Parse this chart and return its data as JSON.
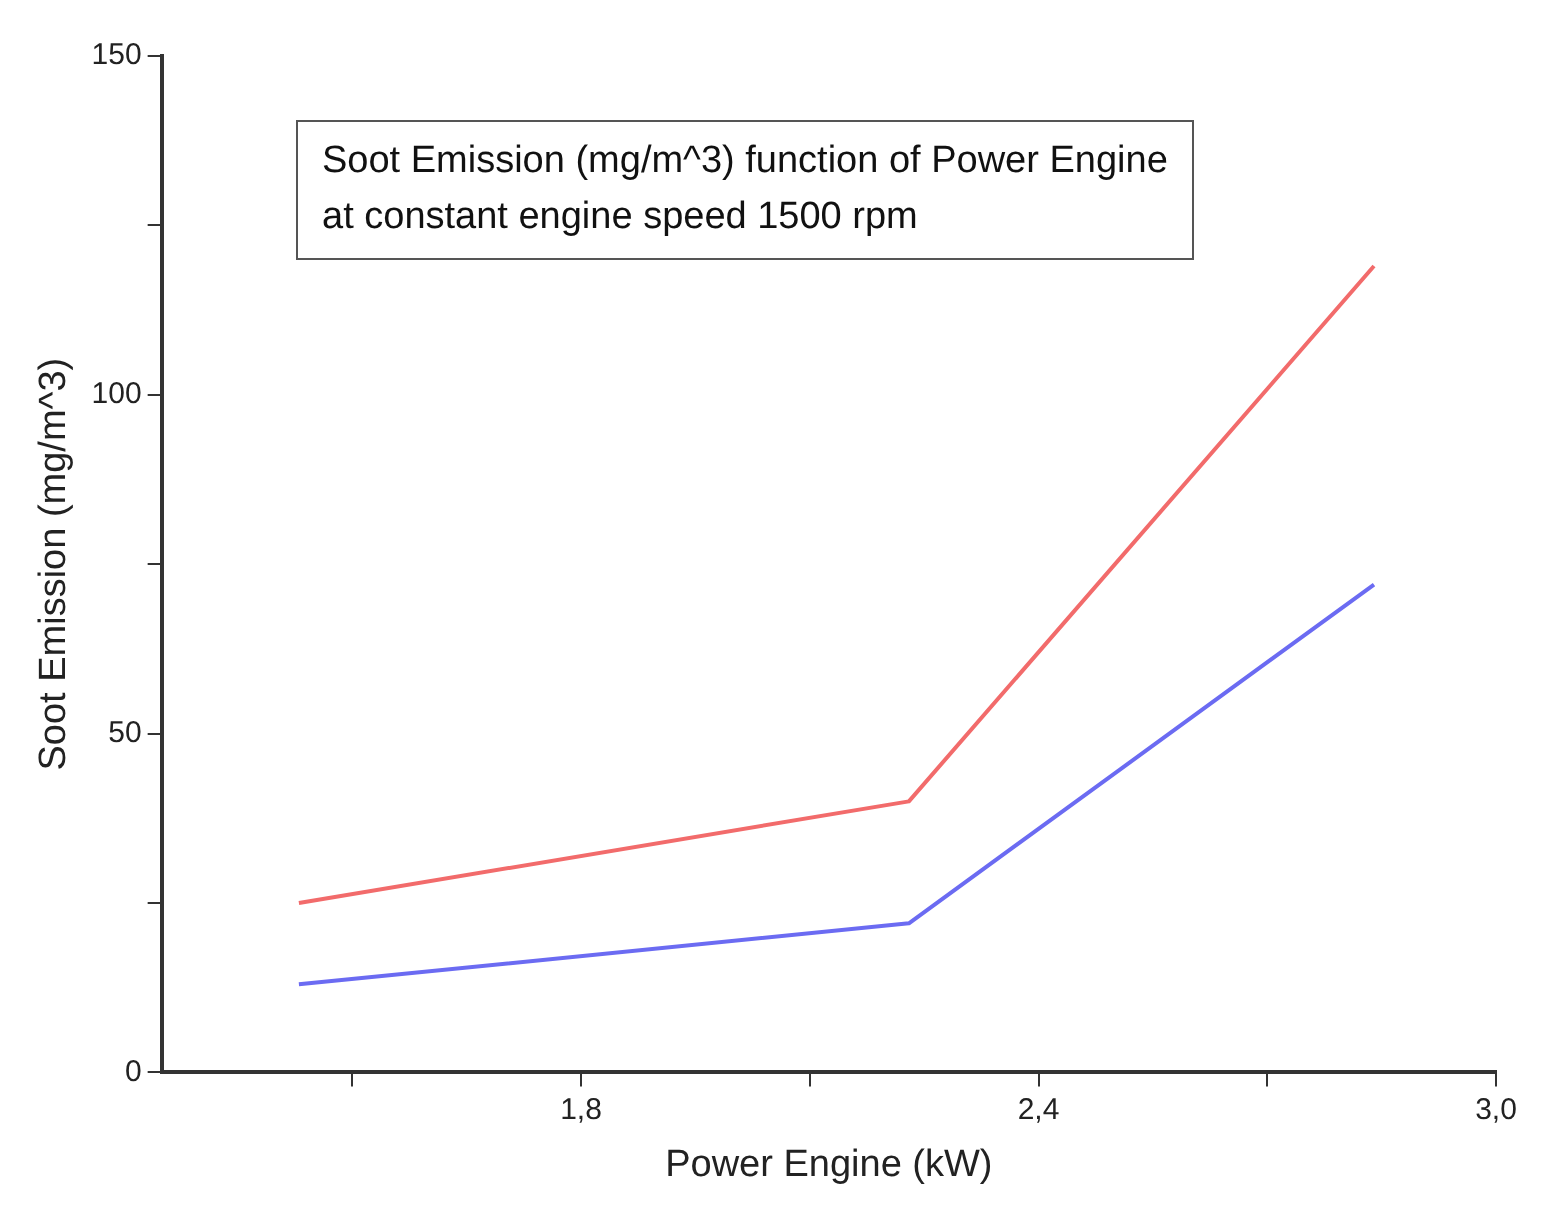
{
  "chart_data": {
    "type": "line",
    "title": "Soot Emission (mg/m^3) function of Power Engine\nat constant engine speed 1500 rpm",
    "xlabel": "Power Engine (kW)",
    "ylabel": "Soot Emission (mg/m^3)",
    "x": [
      1.43,
      2.23,
      2.84
    ],
    "series": [
      {
        "color": "#f26b6b",
        "values": [
          25,
          40,
          119
        ]
      },
      {
        "color": "#6b6bf2",
        "values": [
          13,
          22,
          72
        ]
      }
    ],
    "xlim": [
      1.25,
      3.0
    ],
    "xticks": [
      {
        "value": 1.5,
        "label": null
      },
      {
        "value": 1.8,
        "label": "1,8"
      },
      {
        "value": 2.1,
        "label": null
      },
      {
        "value": 2.4,
        "label": "2,4"
      },
      {
        "value": 2.7,
        "label": null
      },
      {
        "value": 3.0,
        "label": "3,0"
      }
    ],
    "ylim": [
      0,
      150
    ],
    "yticks": [
      0,
      {
        "value": 25,
        "label": null
      },
      50,
      {
        "value": 75,
        "label": null
      },
      100,
      {
        "value": 125,
        "label": null
      },
      150
    ],
    "grid": false,
    "legend": false,
    "marker": "none",
    "line_style": "solid"
  }
}
